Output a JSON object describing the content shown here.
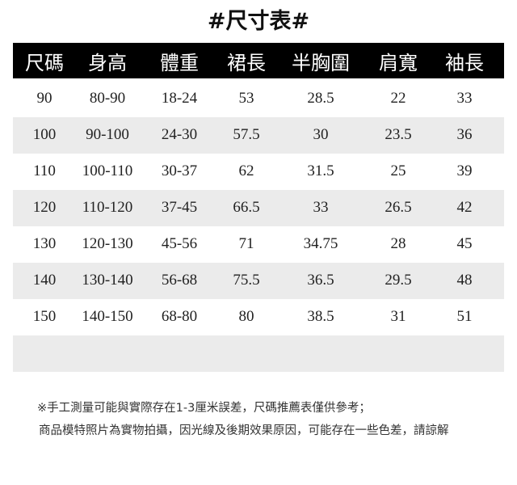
{
  "title": "#尺寸表#",
  "table": {
    "headers": [
      "尺碼",
      "身高",
      "體重",
      "裙長",
      "半胸圍",
      "肩寬",
      "袖長"
    ],
    "rows": [
      [
        "90",
        "80-90",
        "18-24",
        "53",
        "28.5",
        "22",
        "33"
      ],
      [
        "100",
        "90-100",
        "24-30",
        "57.5",
        "30",
        "23.5",
        "36"
      ],
      [
        "110",
        "100-110",
        "30-37",
        "62",
        "31.5",
        "25",
        "39"
      ],
      [
        "120",
        "110-120",
        "37-45",
        "66.5",
        "33",
        "26.5",
        "42"
      ],
      [
        "130",
        "120-130",
        "45-56",
        "71",
        "34.75",
        "28",
        "45"
      ],
      [
        "140",
        "130-140",
        "56-68",
        "75.5",
        "36.5",
        "29.5",
        "48"
      ],
      [
        "150",
        "140-150",
        "68-80",
        "80",
        "38.5",
        "31",
        "51"
      ]
    ]
  },
  "notes": [
    "※手工測量可能與實際存在1-3厘米誤差，尺碼推薦表僅供參考；",
    "商品模特照片為實物拍攝，因光線及後期效果原因，可能存在一些色差，請諒解"
  ],
  "colors": {
    "header_bg": "#000000",
    "stripe": "#ebebeb"
  }
}
